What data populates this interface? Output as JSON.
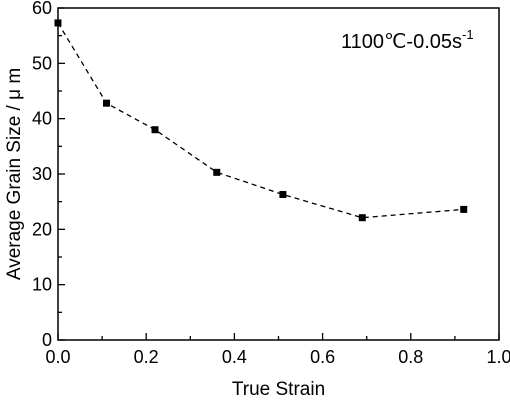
{
  "chart_data": {
    "type": "line",
    "xlabel": "True Strain",
    "ylabel": "Average Grain Size / μ m",
    "xlim": [
      0.0,
      1.0
    ],
    "ylim": [
      0,
      60
    ],
    "xticks": [
      "0.0",
      "0.2",
      "0.4",
      "0.6",
      "0.8",
      "1.0"
    ],
    "yticks": [
      "0",
      "10",
      "20",
      "30",
      "40",
      "50",
      "60"
    ],
    "annotation": {
      "text": "1100℃-0.05s",
      "superscript": "-1",
      "position": "top-right"
    },
    "series": [
      {
        "x": [
          0.0,
          0.11,
          0.22,
          0.36,
          0.51,
          0.69,
          0.92
        ],
        "y": [
          57.3,
          42.8,
          38.0,
          30.3,
          26.3,
          22.1,
          23.6
        ],
        "marker": "square",
        "line_style": "dashed",
        "color": "#000000"
      }
    ],
    "grid": false
  }
}
